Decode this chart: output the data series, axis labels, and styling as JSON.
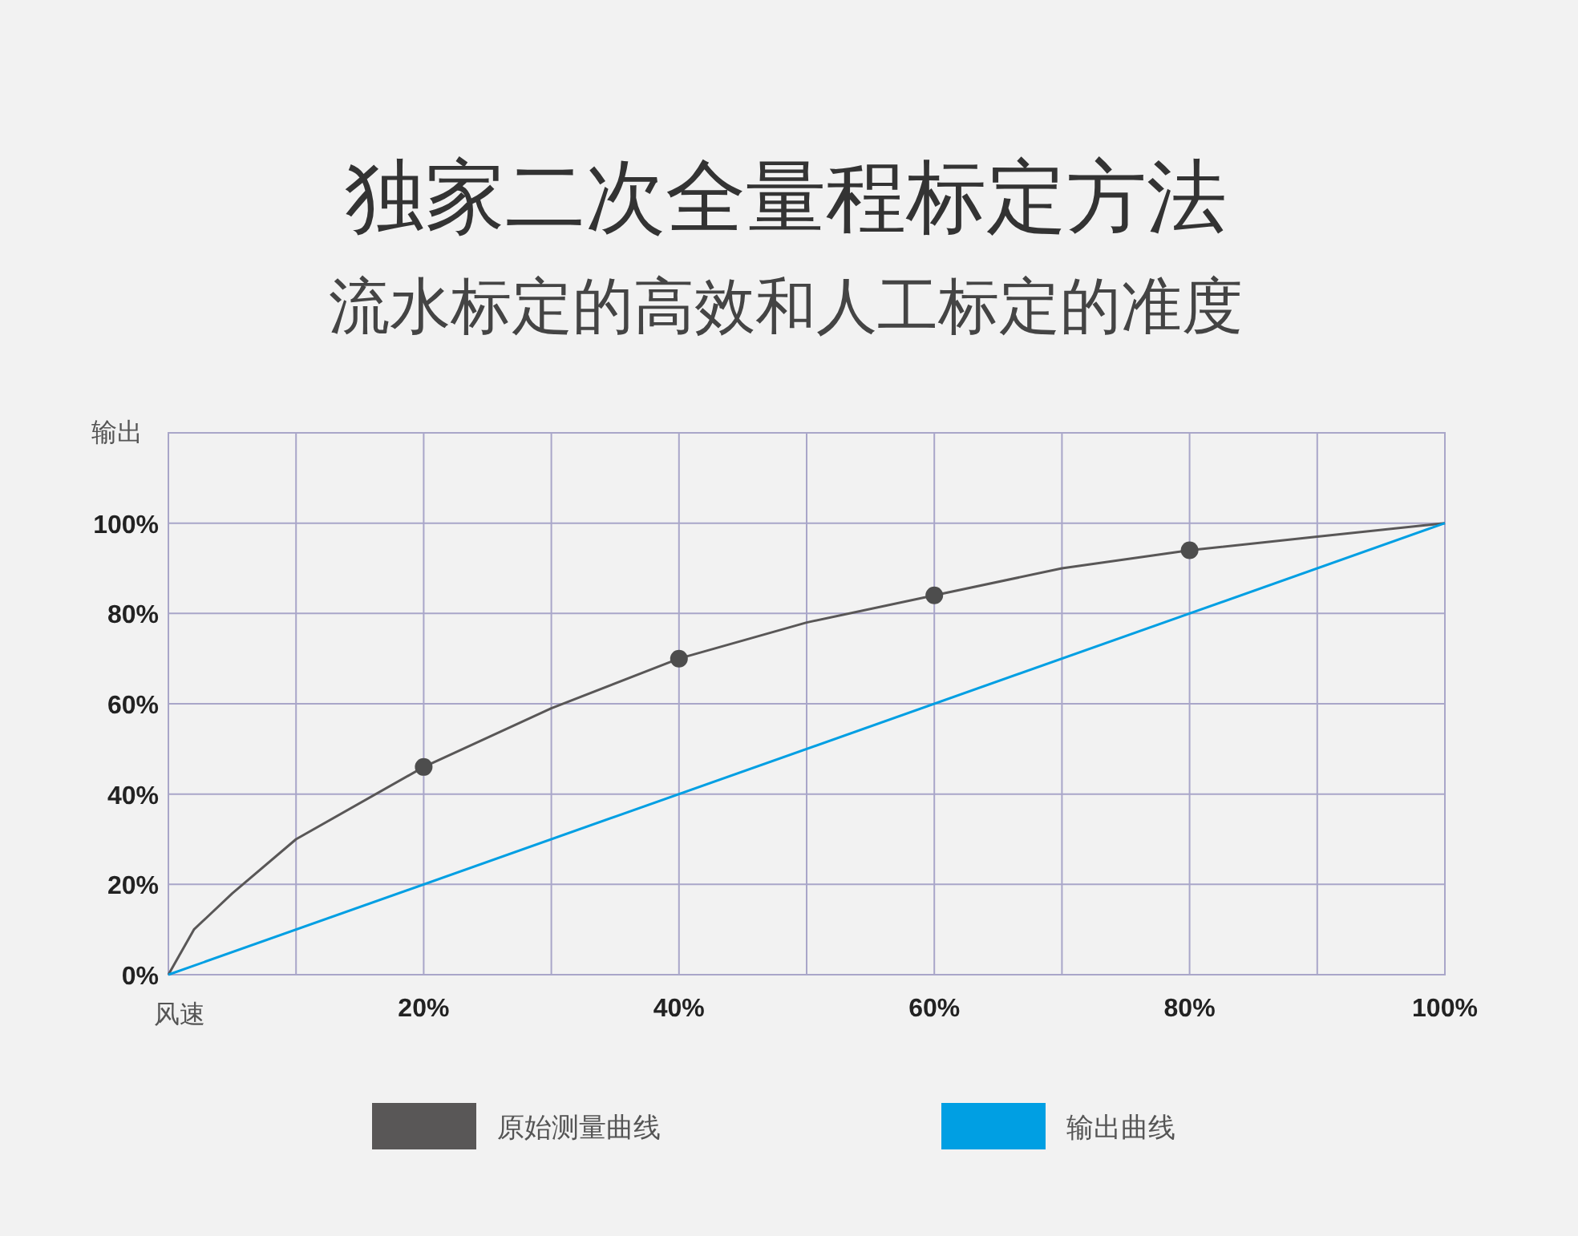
{
  "chart_data": {
    "type": "line",
    "title": "独家二次全量程标定方法",
    "subtitle": "流水标定的高效和人工标定的准度",
    "xlabel": "风速",
    "ylabel": "输出",
    "xlim": [
      0,
      100
    ],
    "ylim": [
      0,
      120
    ],
    "xticks": [
      {
        "value": 0,
        "label": null
      },
      {
        "value": 10,
        "label": null
      },
      {
        "value": 20,
        "label": "20%"
      },
      {
        "value": 30,
        "label": null
      },
      {
        "value": 40,
        "label": "40%"
      },
      {
        "value": 50,
        "label": null
      },
      {
        "value": 60,
        "label": "60%"
      },
      {
        "value": 70,
        "label": null
      },
      {
        "value": 80,
        "label": "80%"
      },
      {
        "value": 90,
        "label": null
      },
      {
        "value": 100,
        "label": "100%"
      }
    ],
    "yticks": [
      {
        "value": 0,
        "label": "0%"
      },
      {
        "value": 20,
        "label": "20%"
      },
      {
        "value": 40,
        "label": "40%"
      },
      {
        "value": 60,
        "label": "60%"
      },
      {
        "value": 80,
        "label": "80%"
      },
      {
        "value": 100,
        "label": "100%"
      },
      {
        "value": 120,
        "label": null
      }
    ],
    "grid": true,
    "legend": "bottom",
    "series": [
      {
        "name": "原始测量曲线",
        "color": "#595757",
        "x": [
          0,
          2,
          5,
          10,
          20,
          30,
          40,
          50,
          60,
          70,
          80,
          90,
          100
        ],
        "values": [
          0,
          10,
          18,
          30,
          46,
          59,
          70,
          78,
          84,
          90,
          94,
          97,
          100
        ]
      },
      {
        "type": "scatter",
        "color": "#4d4d4d",
        "marker": "circle",
        "x": [
          20,
          40,
          60,
          80
        ],
        "values": [
          46,
          70,
          84,
          94
        ]
      },
      {
        "name": "输出曲线",
        "color": "#009fe3",
        "x": [
          0,
          100
        ],
        "values": [
          0,
          100
        ]
      }
    ]
  }
}
